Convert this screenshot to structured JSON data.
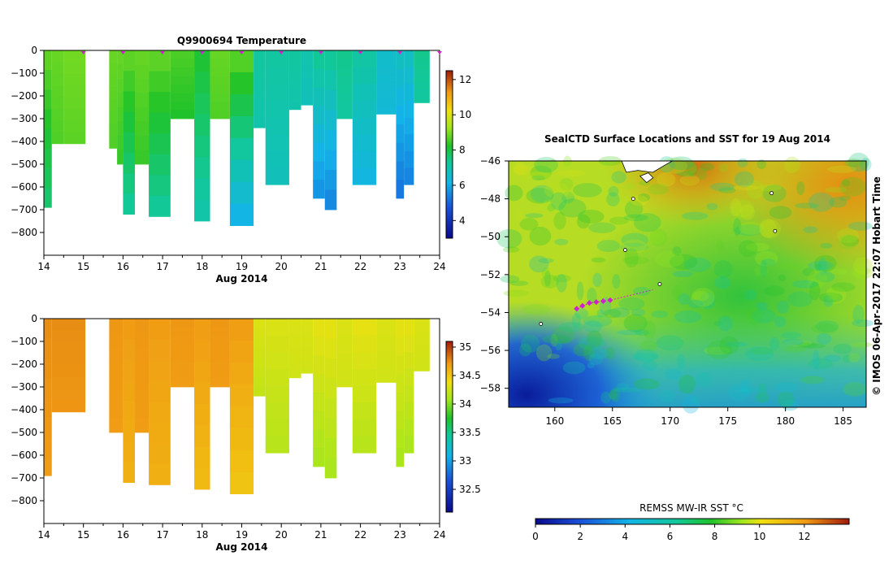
{
  "chart_data": [
    {
      "type": "heatmap",
      "title": "Q9900694  Temperature",
      "xlabel": "Aug 2014",
      "ylabel": "",
      "xlim": [
        14,
        24
      ],
      "ylim": [
        -900,
        0
      ],
      "xticks": [
        14,
        15,
        16,
        17,
        18,
        19,
        20,
        21,
        22,
        23,
        24
      ],
      "yticks": [
        0,
        -100,
        -200,
        -300,
        -400,
        -500,
        -600,
        -700,
        -800
      ],
      "colorbar": {
        "min": 3,
        "max": 12.5,
        "ticks": [
          4,
          6,
          8,
          10,
          12
        ]
      },
      "surface_markers_x": [
        15,
        16,
        17,
        18,
        19,
        20,
        21,
        22,
        23,
        24
      ],
      "profiles": [
        {
          "x0": 14.0,
          "x1": 14.2,
          "depth": 690,
          "v_top": 8.8,
          "v_bottom": 7.6
        },
        {
          "x0": 14.2,
          "x1": 14.5,
          "depth": 410,
          "v_top": 8.8,
          "v_bottom": 8.6
        },
        {
          "x0": 14.5,
          "x1": 15.05,
          "depth": 410,
          "v_top": 8.9,
          "v_bottom": 8.7
        },
        {
          "x0": 15.65,
          "x1": 15.85,
          "depth": 430,
          "v_top": 8.8,
          "v_bottom": 8.6
        },
        {
          "x0": 15.85,
          "x1": 16.0,
          "depth": 500,
          "v_top": 8.8,
          "v_bottom": 8.4
        },
        {
          "x0": 16.0,
          "x1": 16.3,
          "depth": 720,
          "v_top": 8.8,
          "v_bottom": 7.2
        },
        {
          "x0": 16.3,
          "x1": 16.65,
          "depth": 500,
          "v_top": 8.8,
          "v_bottom": 8.4
        },
        {
          "x0": 16.65,
          "x1": 17.2,
          "depth": 730,
          "v_top": 8.8,
          "v_bottom": 7.2
        },
        {
          "x0": 17.2,
          "x1": 17.8,
          "depth": 300,
          "v_top": 8.6,
          "v_bottom": 8.2
        },
        {
          "x0": 17.8,
          "x1": 18.2,
          "depth": 750,
          "v_top": 8.2,
          "v_bottom": 7.0
        },
        {
          "x0": 18.2,
          "x1": 18.7,
          "depth": 300,
          "v_top": 8.8,
          "v_bottom": 8.6
        },
        {
          "x0": 18.7,
          "x1": 19.3,
          "depth": 770,
          "v_top": 8.8,
          "v_bottom": 6.0
        },
        {
          "x0": 19.3,
          "x1": 19.6,
          "depth": 340,
          "v_top": 7.2,
          "v_bottom": 7.0
        },
        {
          "x0": 19.6,
          "x1": 20.2,
          "depth": 590,
          "v_top": 7.2,
          "v_bottom": 6.8
        },
        {
          "x0": 20.2,
          "x1": 20.5,
          "depth": 260,
          "v_top": 7.2,
          "v_bottom": 7.0
        },
        {
          "x0": 20.5,
          "x1": 20.8,
          "depth": 240,
          "v_top": 7.0,
          "v_bottom": 6.8
        },
        {
          "x0": 20.8,
          "x1": 21.1,
          "depth": 650,
          "v_top": 7.4,
          "v_bottom": 5.6
        },
        {
          "x0": 21.1,
          "x1": 21.4,
          "depth": 700,
          "v_top": 7.4,
          "v_bottom": 5.4
        },
        {
          "x0": 21.4,
          "x1": 21.8,
          "depth": 300,
          "v_top": 7.4,
          "v_bottom": 7.2
        },
        {
          "x0": 21.8,
          "x1": 22.4,
          "depth": 590,
          "v_top": 7.2,
          "v_bottom": 6.2
        },
        {
          "x0": 22.4,
          "x1": 22.9,
          "depth": 280,
          "v_top": 6.6,
          "v_bottom": 6.4
        },
        {
          "x0": 22.9,
          "x1": 23.1,
          "depth": 650,
          "v_top": 6.8,
          "v_bottom": 5.2
        },
        {
          "x0": 23.1,
          "x1": 23.35,
          "depth": 590,
          "v_top": 6.8,
          "v_bottom": 5.4
        },
        {
          "x0": 23.35,
          "x1": 23.75,
          "depth": 230,
          "v_top": 7.4,
          "v_bottom": 7.2
        }
      ]
    },
    {
      "type": "heatmap",
      "title": "",
      "xlabel": "Aug 2014",
      "ylabel": "",
      "xlim": [
        14,
        24
      ],
      "ylim": [
        -900,
        0
      ],
      "xticks": [
        14,
        15,
        16,
        17,
        18,
        19,
        20,
        21,
        22,
        23,
        24
      ],
      "yticks": [
        0,
        -100,
        -200,
        -300,
        -400,
        -500,
        -600,
        -700,
        -800
      ],
      "colorbar": {
        "min": 32.1,
        "max": 35.1,
        "ticks": [
          32.5,
          33,
          33.5,
          34,
          34.5,
          35
        ]
      },
      "profiles": [
        {
          "x0": 14.0,
          "x1": 14.2,
          "depth": 690,
          "v_top": 34.75,
          "v_bottom": 34.7
        },
        {
          "x0": 14.2,
          "x1": 15.05,
          "depth": 410,
          "v_top": 34.75,
          "v_bottom": 34.72
        },
        {
          "x0": 15.65,
          "x1": 16.0,
          "depth": 500,
          "v_top": 34.72,
          "v_bottom": 34.7
        },
        {
          "x0": 16.0,
          "x1": 16.3,
          "depth": 720,
          "v_top": 34.7,
          "v_bottom": 34.6
        },
        {
          "x0": 16.3,
          "x1": 16.65,
          "depth": 500,
          "v_top": 34.72,
          "v_bottom": 34.7
        },
        {
          "x0": 16.65,
          "x1": 17.2,
          "depth": 730,
          "v_top": 34.7,
          "v_bottom": 34.6
        },
        {
          "x0": 17.2,
          "x1": 17.8,
          "depth": 300,
          "v_top": 34.72,
          "v_bottom": 34.7
        },
        {
          "x0": 17.8,
          "x1": 18.2,
          "depth": 750,
          "v_top": 34.7,
          "v_bottom": 34.55
        },
        {
          "x0": 18.2,
          "x1": 18.7,
          "depth": 300,
          "v_top": 34.72,
          "v_bottom": 34.7
        },
        {
          "x0": 18.7,
          "x1": 19.3,
          "depth": 770,
          "v_top": 34.7,
          "v_bottom": 34.5
        },
        {
          "x0": 19.3,
          "x1": 19.6,
          "depth": 340,
          "v_top": 34.3,
          "v_bottom": 34.2
        },
        {
          "x0": 19.6,
          "x1": 20.2,
          "depth": 590,
          "v_top": 34.3,
          "v_bottom": 34.15
        },
        {
          "x0": 20.2,
          "x1": 20.5,
          "depth": 260,
          "v_top": 34.3,
          "v_bottom": 34.25
        },
        {
          "x0": 20.5,
          "x1": 20.8,
          "depth": 240,
          "v_top": 34.3,
          "v_bottom": 34.25
        },
        {
          "x0": 20.8,
          "x1": 21.1,
          "depth": 650,
          "v_top": 34.35,
          "v_bottom": 34.1
        },
        {
          "x0": 21.1,
          "x1": 21.4,
          "depth": 700,
          "v_top": 34.35,
          "v_bottom": 34.1
        },
        {
          "x0": 21.4,
          "x1": 21.8,
          "depth": 300,
          "v_top": 34.3,
          "v_bottom": 34.25
        },
        {
          "x0": 21.8,
          "x1": 22.4,
          "depth": 590,
          "v_top": 34.35,
          "v_bottom": 34.15
        },
        {
          "x0": 22.4,
          "x1": 22.9,
          "depth": 280,
          "v_top": 34.3,
          "v_bottom": 34.25
        },
        {
          "x0": 22.9,
          "x1": 23.1,
          "depth": 650,
          "v_top": 34.35,
          "v_bottom": 34.1
        },
        {
          "x0": 23.1,
          "x1": 23.35,
          "depth": 590,
          "v_top": 34.35,
          "v_bottom": 34.1
        },
        {
          "x0": 23.35,
          "x1": 23.75,
          "depth": 230,
          "v_top": 34.3,
          "v_bottom": 34.25
        }
      ]
    },
    {
      "type": "heatmap",
      "title": "SealCTD Surface Locations and SST for 19 Aug 2014",
      "xlabel": "",
      "ylabel": "",
      "xlim": [
        156,
        187
      ],
      "ylim": [
        -59,
        -46
      ],
      "xticks": [
        160,
        165,
        170,
        175,
        180,
        185
      ],
      "yticks": [
        -46,
        -48,
        -50,
        -52,
        -54,
        -56,
        -58
      ],
      "colorbar": {
        "label": "REMSS MW-IR SST °C",
        "min": 0,
        "max": 14,
        "ticks": [
          0,
          2,
          4,
          6,
          8,
          10,
          12
        ]
      },
      "credit": "© IMOS 06-Apr-2017 22:07 Hobart Time",
      "track": [
        {
          "lon": 161.9,
          "lat": -53.8
        },
        {
          "lon": 162.4,
          "lat": -53.65
        },
        {
          "lon": 163.0,
          "lat": -53.5
        },
        {
          "lon": 163.6,
          "lat": -53.45
        },
        {
          "lon": 164.2,
          "lat": -53.4
        },
        {
          "lon": 164.8,
          "lat": -53.35
        }
      ]
    }
  ]
}
